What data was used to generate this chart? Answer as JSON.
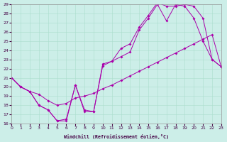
{
  "xlabel": "Windchill (Refroidissement éolien,°C)",
  "xlim": [
    0,
    23
  ],
  "ylim": [
    16,
    29
  ],
  "yticks": [
    16,
    17,
    18,
    19,
    20,
    21,
    22,
    23,
    24,
    25,
    26,
    27,
    28,
    29
  ],
  "xticks": [
    0,
    1,
    2,
    3,
    4,
    5,
    6,
    7,
    8,
    9,
    10,
    11,
    12,
    13,
    14,
    15,
    16,
    17,
    18,
    19,
    20,
    21,
    22,
    23
  ],
  "background_color": "#cceee8",
  "grid_color": "#aaddcc",
  "line_color": "#aa00aa",
  "line1_x": [
    0,
    1,
    2,
    3,
    4,
    5,
    6,
    7,
    8,
    9,
    10,
    11,
    12,
    13,
    14,
    15,
    16,
    17,
    18,
    19,
    20,
    21,
    22,
    23
  ],
  "line1_y": [
    21.0,
    20.0,
    19.5,
    18.0,
    17.5,
    16.3,
    16.3,
    20.2,
    17.3,
    17.3,
    22.5,
    22.8,
    23.3,
    23.8,
    26.2,
    27.5,
    29.0,
    27.2,
    29.0,
    28.8,
    27.5,
    25.0,
    23.0,
    22.2
  ],
  "line2_x": [
    0,
    1,
    2,
    3,
    4,
    5,
    6,
    7,
    8,
    9,
    10,
    11,
    12,
    13,
    14,
    15,
    16,
    17,
    18,
    19,
    20,
    21,
    22,
    23
  ],
  "line2_y": [
    21.0,
    20.0,
    19.5,
    18.0,
    17.5,
    16.3,
    16.5,
    20.2,
    17.5,
    17.3,
    22.3,
    22.8,
    24.2,
    24.7,
    26.5,
    27.8,
    29.2,
    28.8,
    28.8,
    29.0,
    28.8,
    27.5,
    23.0,
    22.2
  ],
  "line3_x": [
    0,
    1,
    2,
    3,
    4,
    5,
    6,
    7,
    8,
    9,
    10,
    11,
    12,
    13,
    14,
    15,
    16,
    17,
    18,
    19,
    20,
    21,
    22,
    23
  ],
  "line3_y": [
    21.0,
    20.0,
    19.5,
    19.2,
    18.5,
    18.0,
    18.2,
    18.8,
    19.0,
    19.3,
    19.8,
    20.2,
    20.7,
    21.2,
    21.7,
    22.2,
    22.7,
    23.2,
    23.7,
    24.2,
    24.7,
    25.2,
    25.7,
    22.2
  ]
}
